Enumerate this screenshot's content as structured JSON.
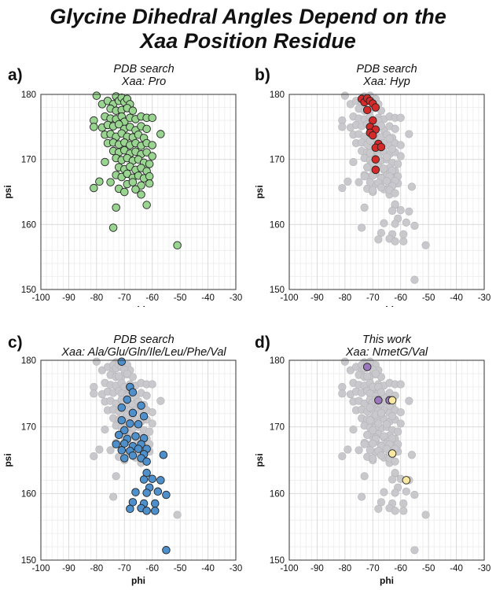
{
  "title_lines": [
    "Glycine Dihedral Angles Depend on the",
    "Xaa Position Residue"
  ],
  "colors": {
    "background_points": "#c9c9cd",
    "pro": "#99d591",
    "hyp": "#d42a2a",
    "other": "#4e90cc",
    "nmetg": "#9b78bd",
    "val": "#f8e8a2",
    "edge": "#222222"
  },
  "chart_data": [
    {
      "type": "scatter",
      "panel": "a)",
      "subtitle": [
        "PDB search",
        "Xaa: Pro"
      ],
      "xlabel": "phi",
      "ylabel": "psi",
      "xlim": [
        -100,
        -30
      ],
      "ylim": [
        150,
        180
      ],
      "xticks": [
        -100,
        -90,
        -80,
        -70,
        -60,
        -50,
        -40,
        -30
      ],
      "yticks": [
        150,
        160,
        170,
        180
      ],
      "grid": true,
      "series": [
        {
          "style": "pro",
          "points": [
            [
              -80,
              179.8
            ],
            [
              -78,
              178.5
            ],
            [
              -76,
              179
            ],
            [
              -74,
              178.5
            ],
            [
              -73,
              179.7
            ],
            [
              -72,
              179
            ],
            [
              -71,
              179.5
            ],
            [
              -70,
              178.8
            ],
            [
              -69,
              179.3
            ],
            [
              -68,
              178.5
            ],
            [
              -75,
              177.8
            ],
            [
              -73,
              177.5
            ],
            [
              -71,
              177.6
            ],
            [
              -69,
              177.9
            ],
            [
              -67,
              177.5
            ],
            [
              -81,
              176
            ],
            [
              -77,
              176.6
            ],
            [
              -75,
              176.3
            ],
            [
              -73,
              176.2
            ],
            [
              -71,
              176.6
            ],
            [
              -70,
              175.8
            ],
            [
              -68,
              176.4
            ],
            [
              -66,
              176.2
            ],
            [
              -64,
              176.6
            ],
            [
              -62,
              176.4
            ],
            [
              -60,
              176.4
            ],
            [
              -81,
              175
            ],
            [
              -78,
              174.9
            ],
            [
              -76,
              175.3
            ],
            [
              -74,
              175.1
            ],
            [
              -72,
              175.4
            ],
            [
              -70,
              174.7
            ],
            [
              -68,
              175
            ],
            [
              -66,
              174.5
            ],
            [
              -64,
              175.1
            ],
            [
              -62,
              174.7
            ],
            [
              -77,
              173.8
            ],
            [
              -75,
              173.9
            ],
            [
              -73,
              173.5
            ],
            [
              -71,
              174
            ],
            [
              -69,
              173.5
            ],
            [
              -67,
              173.4
            ],
            [
              -65,
              173.8
            ],
            [
              -63,
              173.3
            ],
            [
              -57,
              173.9
            ],
            [
              -76,
              172.5
            ],
            [
              -74,
              172.6
            ],
            [
              -72,
              172.3
            ],
            [
              -70,
              172.6
            ],
            [
              -68,
              172.2
            ],
            [
              -66,
              172.5
            ],
            [
              -64,
              172.1
            ],
            [
              -62,
              172.5
            ],
            [
              -60,
              172.2
            ],
            [
              -74,
              171.3
            ],
            [
              -72,
              171.1
            ],
            [
              -70,
              171.4
            ],
            [
              -68,
              170.9
            ],
            [
              -66,
              171.2
            ],
            [
              -64,
              170.8
            ],
            [
              -62,
              171.1
            ],
            [
              -60,
              170.5
            ],
            [
              -73,
              170.2
            ],
            [
              -71,
              169.9
            ],
            [
              -69,
              170.2
            ],
            [
              -67,
              169.8
            ],
            [
              -65,
              170
            ],
            [
              -63,
              169.5
            ],
            [
              -61,
              169.3
            ],
            [
              -77,
              169.6
            ],
            [
              -72,
              168.8
            ],
            [
              -70,
              168.5
            ],
            [
              -68,
              168.9
            ],
            [
              -66,
              168.4
            ],
            [
              -64,
              168.7
            ],
            [
              -62,
              168.2
            ],
            [
              -73,
              167.6
            ],
            [
              -71,
              167.3
            ],
            [
              -69,
              167.8
            ],
            [
              -67,
              167.2
            ],
            [
              -65,
              167.5
            ],
            [
              -63,
              167.1
            ],
            [
              -61,
              167.4
            ],
            [
              -79,
              166.6
            ],
            [
              -75,
              166.5
            ],
            [
              -69,
              166.2
            ],
            [
              -67,
              166.5
            ],
            [
              -64,
              166
            ],
            [
              -61,
              166.3
            ],
            [
              -81,
              165.6
            ],
            [
              -72,
              165.5
            ],
            [
              -70,
              165
            ],
            [
              -66,
              165.4
            ],
            [
              -64,
              164.6
            ],
            [
              -62,
              163
            ],
            [
              -73,
              162.6
            ],
            [
              -74,
              159.5
            ],
            [
              -51,
              156.8
            ]
          ]
        }
      ]
    },
    {
      "type": "scatter",
      "panel": "b)",
      "subtitle": [
        "PDB search",
        "Xaa: Hyp"
      ],
      "xlabel": "phi",
      "ylabel": "psi",
      "xlim": [
        -100,
        -30
      ],
      "ylim": [
        150,
        180
      ],
      "xticks": [
        -100,
        -90,
        -80,
        -70,
        -60,
        -50,
        -40,
        -30
      ],
      "yticks": [
        150,
        160,
        170,
        180
      ],
      "grid": true,
      "series": [
        {
          "style": "hyp",
          "points": [
            [
              -74,
              179.3
            ],
            [
              -73,
              178.8
            ],
            [
              -72,
              179.4
            ],
            [
              -71,
              179
            ],
            [
              -70,
              178.6
            ],
            [
              -72,
              177.6
            ],
            [
              -69,
              178
            ],
            [
              -70,
              176
            ],
            [
              -71,
              175
            ],
            [
              -69,
              174.6
            ],
            [
              -71,
              174.1
            ],
            [
              -70,
              173.7
            ],
            [
              -68,
              172.4
            ],
            [
              -69,
              171.8
            ],
            [
              -67,
              171.9
            ],
            [
              -69,
              170
            ],
            [
              -69,
              168.4
            ]
          ]
        }
      ]
    },
    {
      "type": "scatter",
      "panel": "c)",
      "subtitle": [
        "PDB search",
        "Xaa: Ala/Glu/Gln/Ile/Leu/Phe/Val"
      ],
      "xlabel": "phi",
      "ylabel": "psi",
      "xlim": [
        -100,
        -30
      ],
      "ylim": [
        150,
        180
      ],
      "xticks": [
        -100,
        -90,
        -80,
        -70,
        -60,
        -50,
        -40,
        -30
      ],
      "yticks": [
        150,
        160,
        170,
        180
      ],
      "grid": true,
      "series": [
        {
          "style": "other",
          "points": [
            [
              -71,
              179.8
            ],
            [
              -68,
              176
            ],
            [
              -67,
              175.2
            ],
            [
              -69,
              174.1
            ],
            [
              -64,
              173.2
            ],
            [
              -71,
              172.9
            ],
            [
              -67,
              172.1
            ],
            [
              -63,
              171.6
            ],
            [
              -71,
              171
            ],
            [
              -68,
              170.5
            ],
            [
              -65,
              170.4
            ],
            [
              -70,
              169.5
            ],
            [
              -72,
              168.8
            ],
            [
              -69,
              168.2
            ],
            [
              -66,
              168.6
            ],
            [
              -63,
              168.3
            ],
            [
              -73,
              167.4
            ],
            [
              -70,
              167.5
            ],
            [
              -67,
              167.1
            ],
            [
              -64,
              167.4
            ],
            [
              -62,
              166.7
            ],
            [
              -71,
              166.5
            ],
            [
              -68,
              166.4
            ],
            [
              -65,
              166.7
            ],
            [
              -63,
              165.9
            ],
            [
              -70,
              165.3
            ],
            [
              -67,
              165.7
            ],
            [
              -64,
              165.3
            ],
            [
              -62,
              164.8
            ],
            [
              -56,
              165.8
            ],
            [
              -62,
              163.1
            ],
            [
              -60,
              162.2
            ],
            [
              -63,
              162.1
            ],
            [
              -57,
              162
            ],
            [
              -61,
              160.9
            ],
            [
              -66,
              160.2
            ],
            [
              -62,
              160.1
            ],
            [
              -58,
              160.3
            ],
            [
              -55,
              159.8
            ],
            [
              -67,
              158.7
            ],
            [
              -63,
              158.5
            ],
            [
              -59,
              158.5
            ],
            [
              -68,
              157.7
            ],
            [
              -64,
              157.8
            ],
            [
              -62,
              157.4
            ],
            [
              -59,
              157.4
            ],
            [
              -55,
              151.5
            ]
          ]
        }
      ]
    },
    {
      "type": "scatter",
      "panel": "d)",
      "subtitle": [
        "This work",
        "Xaa: NmetG/Val"
      ],
      "xlabel": "phi",
      "ylabel": "psi",
      "xlim": [
        -100,
        -30
      ],
      "ylim": [
        150,
        180
      ],
      "xticks": [
        -100,
        -90,
        -80,
        -70,
        -60,
        -50,
        -40,
        -30
      ],
      "yticks": [
        150,
        160,
        170,
        180
      ],
      "grid": true,
      "series": [
        {
          "style": "nmetg",
          "points": [
            [
              -72,
              179
            ],
            [
              -68,
              174
            ],
            [
              -64,
              174
            ]
          ]
        },
        {
          "style": "val",
          "points": [
            [
              -63,
              174
            ],
            [
              -63,
              166
            ],
            [
              -58,
              162
            ]
          ]
        }
      ]
    }
  ]
}
